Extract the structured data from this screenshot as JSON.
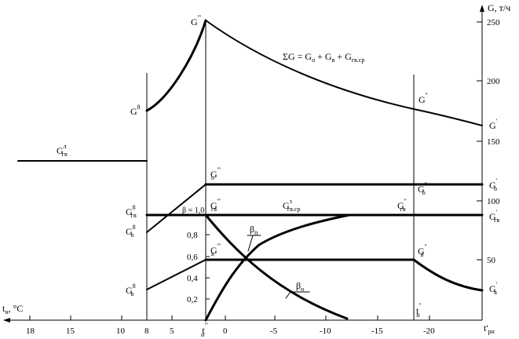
{
  "diagram": {
    "y_axis": {
      "title": "G, т/ч",
      "ticks": [
        "250",
        "200",
        "150",
        "100",
        "50"
      ]
    },
    "x_axis_bottom": {
      "title_main": "t",
      "title_sub": "н",
      "title_unit": ", °C",
      "ticks": [
        "18",
        "15",
        "10",
        "8",
        "5",
        "0",
        "-5",
        "-10",
        "-15",
        "-20"
      ],
      "end_main": "t'",
      "end_sub": "рн"
    },
    "x_marks": {
      "t_n_third": {
        "main": "t",
        "sup": "'''",
        "sub": "н"
      },
      "t_n_second": {
        "main": "t",
        "sup": "''",
        "sub": "н"
      }
    },
    "beta_axis": {
      "ticks": [
        "0,8",
        "0,6",
        "0,4",
        "0,2"
      ],
      "top_label": "β = 1,0"
    },
    "formula": {
      "lhs": "ΣG = G",
      "sub_o": "о",
      "plus1": " + G",
      "sub_v": "в",
      "plus2": " + G",
      "sub_gv": "гв.ср"
    },
    "curve_labels": {
      "beta_p": {
        "main": "β",
        "sub": "п"
      },
      "beta_o": {
        "main": "β",
        "sub": "о"
      },
      "G_sum_8": {
        "main": "G",
        "sup": "8"
      },
      "G_sum_third": {
        "main": "G",
        "sup": "'''"
      },
      "G_sum_second": {
        "main": "G",
        "sup": "''"
      },
      "G_sum_first": {
        "main": "G",
        "sup": "'"
      },
      "Ggv_summer": {
        "main": "G",
        "sub": "гв",
        "sup": "л"
      },
      "Go_third": {
        "main": "G",
        "sub": "о",
        "sup": "'''"
      },
      "Go_second": {
        "main": "G",
        "sub": "о",
        "sup": "''"
      },
      "Go_first": {
        "main": "G",
        "sub": "о",
        "sup": "'"
      },
      "Go_8": {
        "main": "G",
        "sub": "о",
        "sup": "8"
      },
      "Ggv_8": {
        "main": "G",
        "sub": "гв",
        "sup": "8"
      },
      "Ggv_third": {
        "main": "G",
        "sub": "гв",
        "sup": "'''"
      },
      "Ggv_sr": {
        "main": "G",
        "sub": "гв.ср",
        "sup": "з"
      },
      "Ggv_second": {
        "main": "G",
        "sub": "гв",
        "sup": "''"
      },
      "Ggv_first": {
        "main": "G",
        "sub": "гв",
        "sup": "'"
      },
      "Gv_8": {
        "main": "G",
        "sub": "в",
        "sup": "8"
      },
      "Gv_third": {
        "main": "G",
        "sub": "в",
        "sup": "'''"
      },
      "Gv_second": {
        "main": "G",
        "sub": "в",
        "sup": "''"
      },
      "Gv_first": {
        "main": "G",
        "sub": "в",
        "sup": "'"
      }
    }
  }
}
